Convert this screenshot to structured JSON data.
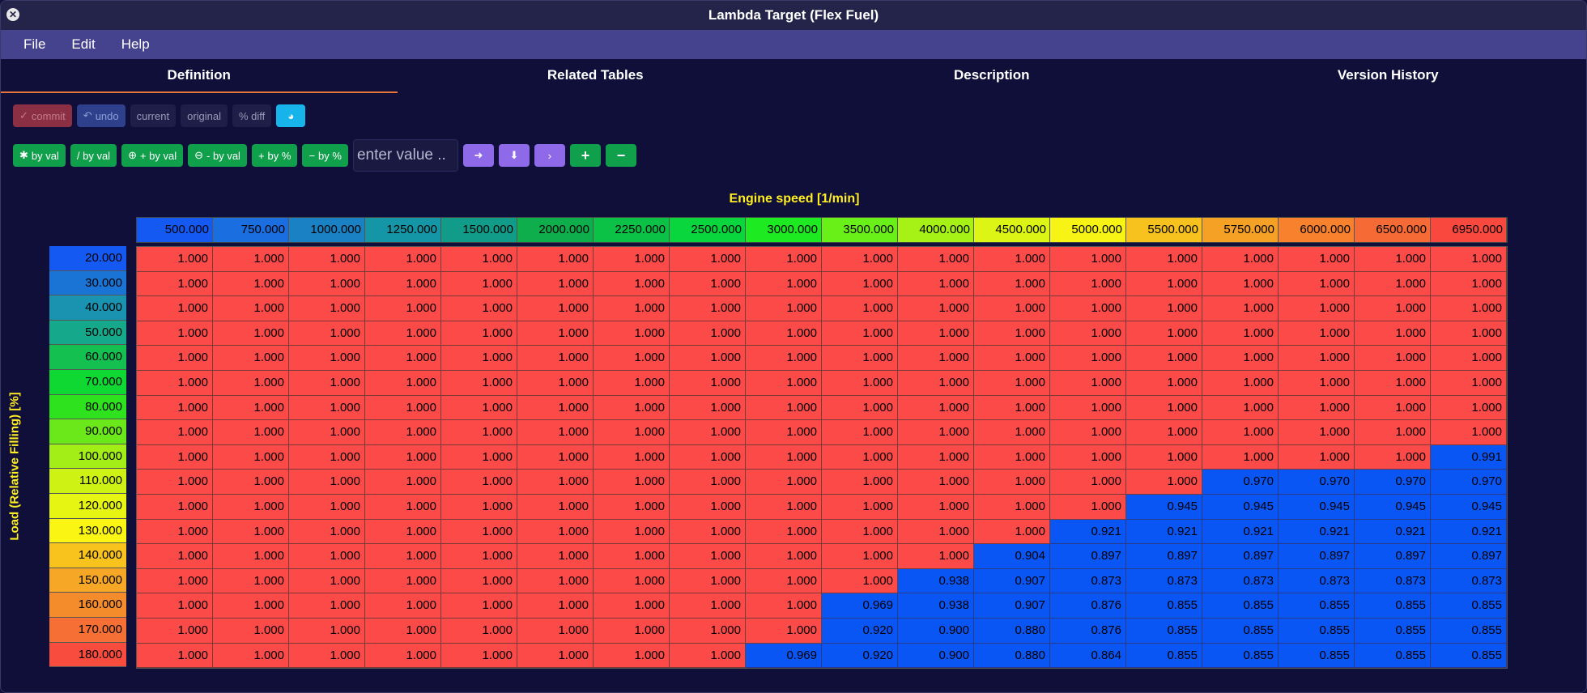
{
  "window": {
    "title": "Lambda Target (Flex Fuel)"
  },
  "menu": {
    "file": "File",
    "edit": "Edit",
    "help": "Help"
  },
  "tabs": [
    "Definition",
    "Related Tables",
    "Description",
    "Version History"
  ],
  "toolbar": {
    "commit": "commit",
    "undo": "undo",
    "current": "current",
    "original": "original",
    "pct_diff": "% diff",
    "mul_by_val": "by val",
    "div_by_val": "/ by val",
    "add_by_val": "+ by val",
    "sub_by_val": "- by val",
    "add_by_pct": "by %",
    "sub_by_pct": "by %",
    "value_placeholder": "enter value .."
  },
  "axes": {
    "x_title": "Engine speed [1/min]",
    "y_title": "Load (Relative Filling) [%]",
    "x": [
      "500.000",
      "750.000",
      "1000.000",
      "1250.000",
      "1500.000",
      "2000.000",
      "2250.000",
      "2500.000",
      "3000.000",
      "3500.000",
      "4000.000",
      "4500.000",
      "5000.000",
      "5500.000",
      "5750.000",
      "6000.000",
      "6500.000",
      "6950.000"
    ],
    "y": [
      "20.000",
      "30.000",
      "40.000",
      "50.000",
      "60.000",
      "70.000",
      "80.000",
      "90.000",
      "100.000",
      "110.000",
      "120.000",
      "130.000",
      "140.000",
      "150.000",
      "160.000",
      "170.000",
      "180.000"
    ]
  },
  "colors": {
    "x_axis": [
      "#1559f3",
      "#1a6ee0",
      "#1a82c4",
      "#1596a6",
      "#119c8a",
      "#0fae4c",
      "#0bc246",
      "#09d63c",
      "#1eea22",
      "#6af019",
      "#a6f216",
      "#dcf514",
      "#f7f415",
      "#f7c21d",
      "#f5a126",
      "#f8812d",
      "#f66a35",
      "#f9493f"
    ],
    "y_axis": [
      "#1559f3",
      "#1a74d6",
      "#1993b0",
      "#16a88a",
      "#13c050",
      "#10d833",
      "#2ee31d",
      "#6ae81a",
      "#a3ee17",
      "#cdf214",
      "#e6f512",
      "#fbf514",
      "#f8c31d",
      "#f6a725",
      "#f58c2b",
      "#f66f34",
      "#f84c3e"
    ],
    "red": "#fb4a48",
    "blue": "#0a56f5"
  },
  "table": [
    [
      "1.000",
      "1.000",
      "1.000",
      "1.000",
      "1.000",
      "1.000",
      "1.000",
      "1.000",
      "1.000",
      "1.000",
      "1.000",
      "1.000",
      "1.000",
      "1.000",
      "1.000",
      "1.000",
      "1.000",
      "1.000"
    ],
    [
      "1.000",
      "1.000",
      "1.000",
      "1.000",
      "1.000",
      "1.000",
      "1.000",
      "1.000",
      "1.000",
      "1.000",
      "1.000",
      "1.000",
      "1.000",
      "1.000",
      "1.000",
      "1.000",
      "1.000",
      "1.000"
    ],
    [
      "1.000",
      "1.000",
      "1.000",
      "1.000",
      "1.000",
      "1.000",
      "1.000",
      "1.000",
      "1.000",
      "1.000",
      "1.000",
      "1.000",
      "1.000",
      "1.000",
      "1.000",
      "1.000",
      "1.000",
      "1.000"
    ],
    [
      "1.000",
      "1.000",
      "1.000",
      "1.000",
      "1.000",
      "1.000",
      "1.000",
      "1.000",
      "1.000",
      "1.000",
      "1.000",
      "1.000",
      "1.000",
      "1.000",
      "1.000",
      "1.000",
      "1.000",
      "1.000"
    ],
    [
      "1.000",
      "1.000",
      "1.000",
      "1.000",
      "1.000",
      "1.000",
      "1.000",
      "1.000",
      "1.000",
      "1.000",
      "1.000",
      "1.000",
      "1.000",
      "1.000",
      "1.000",
      "1.000",
      "1.000",
      "1.000"
    ],
    [
      "1.000",
      "1.000",
      "1.000",
      "1.000",
      "1.000",
      "1.000",
      "1.000",
      "1.000",
      "1.000",
      "1.000",
      "1.000",
      "1.000",
      "1.000",
      "1.000",
      "1.000",
      "1.000",
      "1.000",
      "1.000"
    ],
    [
      "1.000",
      "1.000",
      "1.000",
      "1.000",
      "1.000",
      "1.000",
      "1.000",
      "1.000",
      "1.000",
      "1.000",
      "1.000",
      "1.000",
      "1.000",
      "1.000",
      "1.000",
      "1.000",
      "1.000",
      "1.000"
    ],
    [
      "1.000",
      "1.000",
      "1.000",
      "1.000",
      "1.000",
      "1.000",
      "1.000",
      "1.000",
      "1.000",
      "1.000",
      "1.000",
      "1.000",
      "1.000",
      "1.000",
      "1.000",
      "1.000",
      "1.000",
      "1.000"
    ],
    [
      "1.000",
      "1.000",
      "1.000",
      "1.000",
      "1.000",
      "1.000",
      "1.000",
      "1.000",
      "1.000",
      "1.000",
      "1.000",
      "1.000",
      "1.000",
      "1.000",
      "1.000",
      "1.000",
      "1.000",
      "0.991"
    ],
    [
      "1.000",
      "1.000",
      "1.000",
      "1.000",
      "1.000",
      "1.000",
      "1.000",
      "1.000",
      "1.000",
      "1.000",
      "1.000",
      "1.000",
      "1.000",
      "1.000",
      "0.970",
      "0.970",
      "0.970",
      "0.970"
    ],
    [
      "1.000",
      "1.000",
      "1.000",
      "1.000",
      "1.000",
      "1.000",
      "1.000",
      "1.000",
      "1.000",
      "1.000",
      "1.000",
      "1.000",
      "1.000",
      "0.945",
      "0.945",
      "0.945",
      "0.945",
      "0.945"
    ],
    [
      "1.000",
      "1.000",
      "1.000",
      "1.000",
      "1.000",
      "1.000",
      "1.000",
      "1.000",
      "1.000",
      "1.000",
      "1.000",
      "1.000",
      "0.921",
      "0.921",
      "0.921",
      "0.921",
      "0.921",
      "0.921"
    ],
    [
      "1.000",
      "1.000",
      "1.000",
      "1.000",
      "1.000",
      "1.000",
      "1.000",
      "1.000",
      "1.000",
      "1.000",
      "1.000",
      "0.904",
      "0.897",
      "0.897",
      "0.897",
      "0.897",
      "0.897",
      "0.897"
    ],
    [
      "1.000",
      "1.000",
      "1.000",
      "1.000",
      "1.000",
      "1.000",
      "1.000",
      "1.000",
      "1.000",
      "1.000",
      "0.938",
      "0.907",
      "0.873",
      "0.873",
      "0.873",
      "0.873",
      "0.873",
      "0.873"
    ],
    [
      "1.000",
      "1.000",
      "1.000",
      "1.000",
      "1.000",
      "1.000",
      "1.000",
      "1.000",
      "1.000",
      "0.969",
      "0.938",
      "0.907",
      "0.876",
      "0.855",
      "0.855",
      "0.855",
      "0.855",
      "0.855"
    ],
    [
      "1.000",
      "1.000",
      "1.000",
      "1.000",
      "1.000",
      "1.000",
      "1.000",
      "1.000",
      "1.000",
      "0.920",
      "0.900",
      "0.880",
      "0.876",
      "0.855",
      "0.855",
      "0.855",
      "0.855",
      "0.855"
    ],
    [
      "1.000",
      "1.000",
      "1.000",
      "1.000",
      "1.000",
      "1.000",
      "1.000",
      "1.000",
      "0.969",
      "0.920",
      "0.900",
      "0.880",
      "0.864",
      "0.855",
      "0.855",
      "0.855",
      "0.855",
      "0.855"
    ]
  ]
}
